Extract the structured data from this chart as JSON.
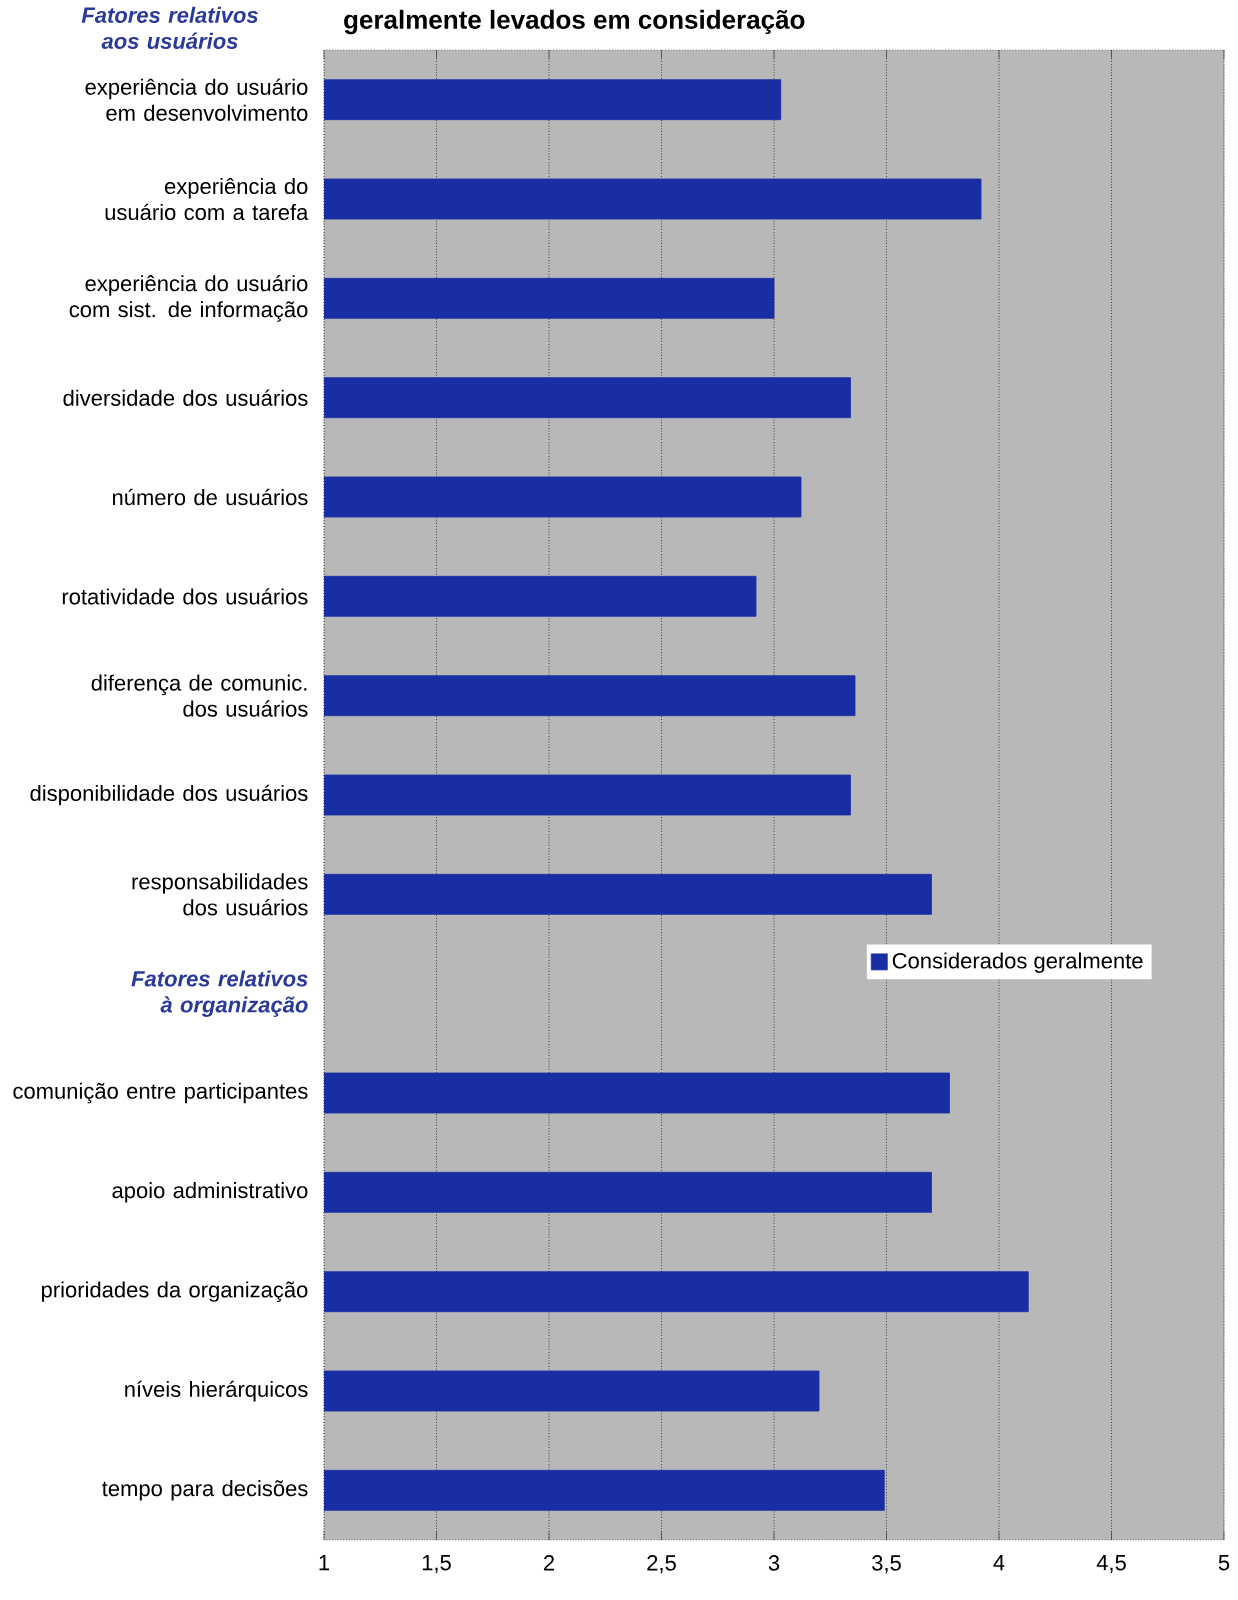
{
  "chart_data": {
    "type": "bar",
    "orientation": "horizontal",
    "title": "geralmente levados em consideração",
    "annotations": [
      "Fatores relativos aos usuários"
    ],
    "categories": [
      "experiência do usuário em desenvolvimento",
      "experiência do usuário com a tarefa",
      "experiência do usuário com sist. de informação",
      "diversidade dos usuários",
      "número de usuários",
      "rotatividade dos usuários",
      "diferença de comunic. dos usuários",
      "disponibilidade dos usuários",
      "responsabilidades dos usuários",
      "Fatores relativos à organização",
      "comunição entre participantes",
      "apoio administrativo",
      "prioridades da organização",
      "níveis hierárquicos",
      "tempo para decisões"
    ],
    "series": [
      {
        "name": "Considerados geralmente",
        "color": "#1a2ea3",
        "values": [
          3.03,
          3.92,
          3.0,
          3.34,
          3.12,
          2.92,
          3.36,
          3.34,
          3.7,
          null,
          3.78,
          3.7,
          4.13,
          3.2,
          3.49
        ]
      }
    ],
    "xlim": [
      1,
      5
    ],
    "xticks": [
      1,
      {
        "value": 1.5,
        "label": "1,5"
      },
      2,
      {
        "value": 2.5,
        "label": "2,5"
      },
      3,
      {
        "value": 3.5,
        "label": "3,5"
      },
      4,
      {
        "value": 4.5,
        "label": "4,5"
      },
      5
    ],
    "grid": "x",
    "legend": "right"
  }
}
